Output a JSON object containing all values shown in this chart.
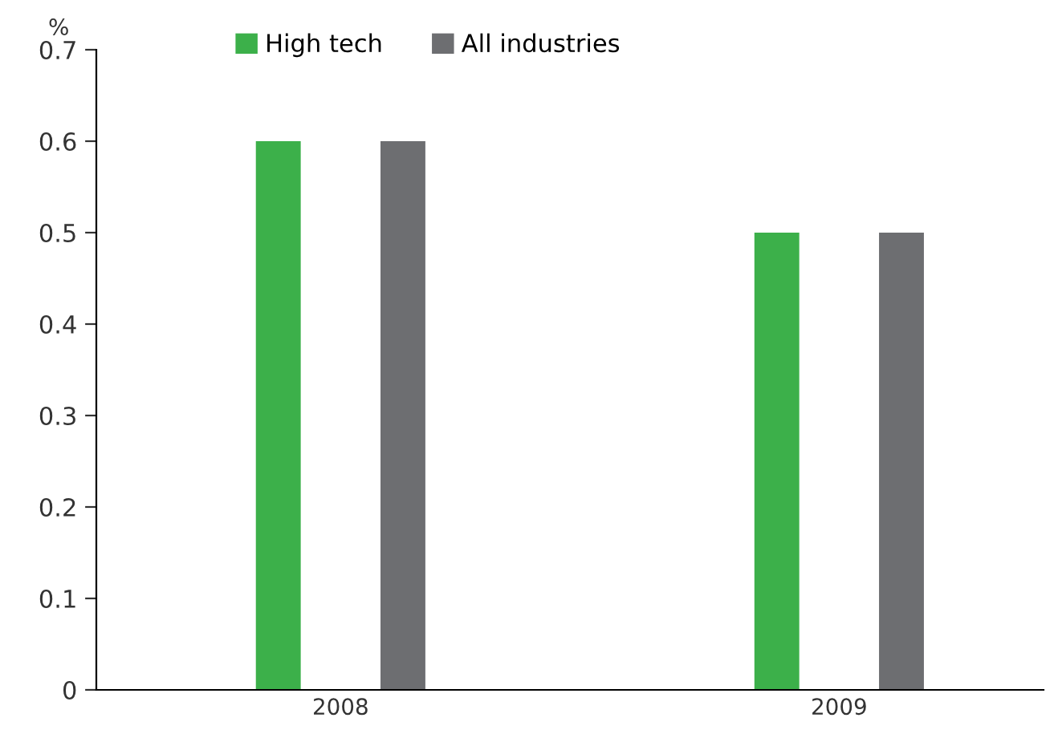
{
  "chart_data": {
    "type": "bar",
    "ylabel": "%",
    "categories": [
      "2008",
      "2009"
    ],
    "series": [
      {
        "name": "High tech",
        "color": "#3cb04a",
        "values": [
          0.6,
          0.5
        ]
      },
      {
        "name": "All industries",
        "color": "#6d6e71",
        "values": [
          0.6,
          0.5
        ]
      }
    ],
    "ylim": [
      0,
      0.7
    ],
    "yticks": [
      0,
      0.1,
      0.2,
      0.3,
      0.4,
      0.5,
      0.6,
      0.7
    ],
    "grid": false,
    "legend": "top"
  }
}
